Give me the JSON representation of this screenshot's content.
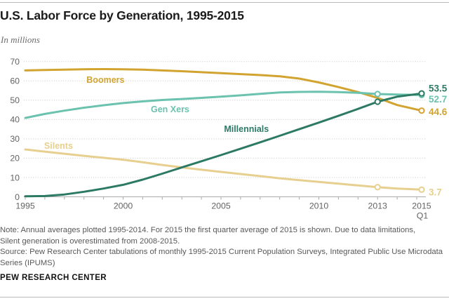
{
  "header": {
    "title": "U.S. Labor Force by Generation, 1995-2015",
    "subtitle": "In millions"
  },
  "chart_data": {
    "type": "line",
    "title": "U.S. Labor Force by Generation, 1995-2015",
    "ylabel": "In millions",
    "xlabel": "",
    "xlim": [
      1995,
      2015.25
    ],
    "ylim": [
      0,
      70
    ],
    "grid": "horizontal-dotted",
    "legend_position": "inline-labels",
    "y_ticks": [
      0,
      10,
      20,
      30,
      40,
      50,
      60,
      70
    ],
    "x_ticks": [
      {
        "label": "1995",
        "year": 1995
      },
      {
        "label": "2000",
        "year": 2000
      },
      {
        "label": "2005",
        "year": 2005
      },
      {
        "label": "2010",
        "year": 2010
      },
      {
        "label": "2013",
        "year": 2013
      },
      {
        "label": "2015",
        "year": 2015.25,
        "sublabel": "Q1"
      }
    ],
    "series": [
      {
        "name": "Silents",
        "color": "#e7d08f",
        "end_label": "3.7",
        "end_value": 3.7,
        "end_label_dy": 3.5,
        "inline_label": {
          "text": "Silents",
          "year": 1996.7,
          "value": 24.8
        },
        "marker_years": [
          2013,
          2015.25
        ],
        "points": [
          [
            1995,
            24.5
          ],
          [
            1996,
            23.4
          ],
          [
            1997,
            22.3
          ],
          [
            1998,
            21.2
          ],
          [
            1999,
            20.2
          ],
          [
            2000,
            19.2
          ],
          [
            2001,
            17.9
          ],
          [
            2002,
            16.5
          ],
          [
            2003,
            15.2
          ],
          [
            2004,
            14.0
          ],
          [
            2005,
            12.9
          ],
          [
            2006,
            11.8
          ],
          [
            2007,
            10.7
          ],
          [
            2008,
            9.6
          ],
          [
            2009,
            8.6
          ],
          [
            2010,
            7.7
          ],
          [
            2011,
            6.8
          ],
          [
            2012,
            5.9
          ],
          [
            2013,
            5.0
          ],
          [
            2014,
            4.3
          ],
          [
            2015.25,
            3.7
          ]
        ]
      },
      {
        "name": "Boomers",
        "color": "#d2a42f",
        "end_label": "44.6",
        "end_value": 44.6,
        "end_label_dy": 2,
        "inline_label": {
          "text": "Boomers",
          "year": 1999.1,
          "value": 59.0
        },
        "marker_years": [
          2015.25
        ],
        "points": [
          [
            1995,
            65.4
          ],
          [
            1996,
            65.6
          ],
          [
            1997,
            65.8
          ],
          [
            1998,
            66.0
          ],
          [
            1999,
            66.1
          ],
          [
            2000,
            66.0
          ],
          [
            2001,
            65.8
          ],
          [
            2002,
            65.4
          ],
          [
            2003,
            65.0
          ],
          [
            2004,
            64.5
          ],
          [
            2005,
            64.0
          ],
          [
            2006,
            63.5
          ],
          [
            2007,
            63.0
          ],
          [
            2008,
            62.4
          ],
          [
            2009,
            61.2
          ],
          [
            2010,
            59.2
          ],
          [
            2011,
            56.8
          ],
          [
            2012,
            54.2
          ],
          [
            2013,
            51.2
          ],
          [
            2014,
            47.5
          ],
          [
            2015.25,
            44.6
          ]
        ]
      },
      {
        "name": "Gen Xers",
        "color": "#6bc2ae",
        "end_label": "52.7",
        "end_value": 52.7,
        "end_label_dy": 6,
        "inline_label": {
          "text": "Gen Xers",
          "year": 2002.4,
          "value": 43.8
        },
        "marker_years": [
          2013,
          2015.25
        ],
        "points": [
          [
            1995,
            40.8
          ],
          [
            1996,
            42.9
          ],
          [
            1997,
            44.6
          ],
          [
            1998,
            46.1
          ],
          [
            1999,
            47.4
          ],
          [
            2000,
            48.5
          ],
          [
            2001,
            49.4
          ],
          [
            2002,
            50.1
          ],
          [
            2003,
            50.6
          ],
          [
            2004,
            51.2
          ],
          [
            2005,
            51.8
          ],
          [
            2006,
            52.5
          ],
          [
            2007,
            53.3
          ],
          [
            2008,
            54.0
          ],
          [
            2009,
            54.3
          ],
          [
            2010,
            54.4
          ],
          [
            2011,
            54.2
          ],
          [
            2012,
            53.8
          ],
          [
            2013,
            53.2
          ],
          [
            2014,
            52.9
          ],
          [
            2015.25,
            52.7
          ]
        ]
      },
      {
        "name": "Millennials",
        "color": "#2d7a64",
        "end_label": "53.5",
        "end_value": 53.5,
        "end_label_dy": -7,
        "inline_label": {
          "text": "Millennials",
          "year": 2006.3,
          "value": 33.6
        },
        "marker_years": [
          2013,
          2015.25
        ],
        "points": [
          [
            1995,
            0.3
          ],
          [
            1996,
            0.4
          ],
          [
            1997,
            1.2
          ],
          [
            1998,
            2.6
          ],
          [
            1999,
            4.3
          ],
          [
            2000,
            6.2
          ],
          [
            2001,
            8.9
          ],
          [
            2002,
            12.0
          ],
          [
            2003,
            15.2
          ],
          [
            2004,
            18.4
          ],
          [
            2005,
            21.6
          ],
          [
            2006,
            24.9
          ],
          [
            2007,
            28.2
          ],
          [
            2008,
            31.6
          ],
          [
            2009,
            35.0
          ],
          [
            2010,
            38.4
          ],
          [
            2011,
            41.9
          ],
          [
            2012,
            45.5
          ],
          [
            2013,
            49.2
          ],
          [
            2014,
            51.8
          ],
          [
            2015.25,
            53.5
          ]
        ]
      }
    ]
  },
  "footer": {
    "note_lines": [
      "Note: Annual averages plotted 1995-2014. For 2015 the first quarter average of 2015 is shown. Due to data limitations,",
      "Silent generation is overestimated from 2008-2015."
    ],
    "source_lines": [
      "Source: Pew Research Center tabulations of monthly 1995-2015 Current Population Surveys, Integrated Public Use Microdata",
      "Series (IPUMS)"
    ],
    "brand": "PEW RESEARCH CENTER"
  },
  "colors": {
    "millennials": "#2d7a64",
    "gen_x": "#6bc2ae",
    "boomers": "#d2a42f",
    "silents": "#e7d08f",
    "grid": "#c8c8c8",
    "axis": "#ababab",
    "tick_text": "#636363"
  }
}
